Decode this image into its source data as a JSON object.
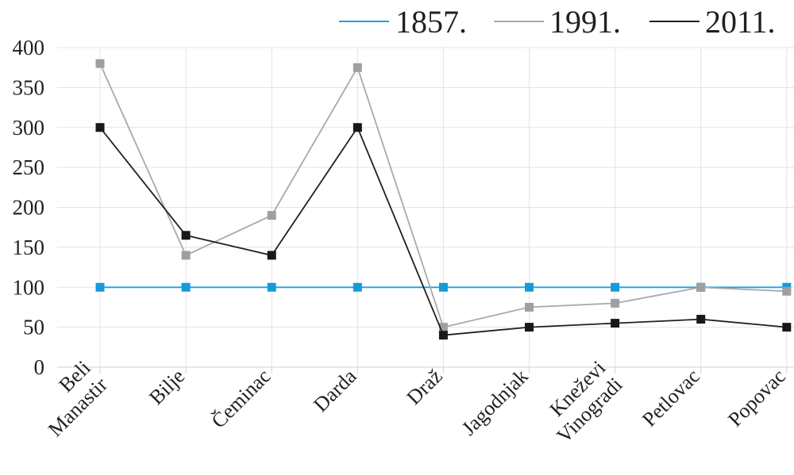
{
  "chart_data": {
    "type": "line",
    "categories": [
      [
        "Beli",
        "Manastir"
      ],
      [
        "Bilje"
      ],
      [
        "Čeminac"
      ],
      [
        "Darda"
      ],
      [
        "Draž"
      ],
      [
        "Jagodnjak"
      ],
      [
        "Kneževi",
        "Vinogradi"
      ],
      [
        "Petlovac"
      ],
      [
        "Popovac"
      ]
    ],
    "series": [
      {
        "name": "1857.",
        "color": "#1aa3dd",
        "marker_color": "#149bd7",
        "values": [
          100,
          100,
          100,
          100,
          100,
          100,
          100,
          100,
          100
        ]
      },
      {
        "name": "1991.",
        "color": "#a7a9ac",
        "marker_color": "#9d9fa2",
        "values": [
          380,
          140,
          190,
          375,
          50,
          75,
          80,
          100,
          95
        ]
      },
      {
        "name": "2011.",
        "color": "#231f20",
        "marker_color": "#1a1718",
        "values": [
          300,
          165,
          140,
          300,
          40,
          50,
          55,
          60,
          50
        ]
      }
    ],
    "ylim": [
      0,
      400
    ],
    "yticks": [
      0,
      50,
      100,
      150,
      200,
      250,
      300,
      350,
      400
    ],
    "grid": true,
    "legend_position": "top-right",
    "title": "",
    "xlabel": "",
    "ylabel": ""
  }
}
